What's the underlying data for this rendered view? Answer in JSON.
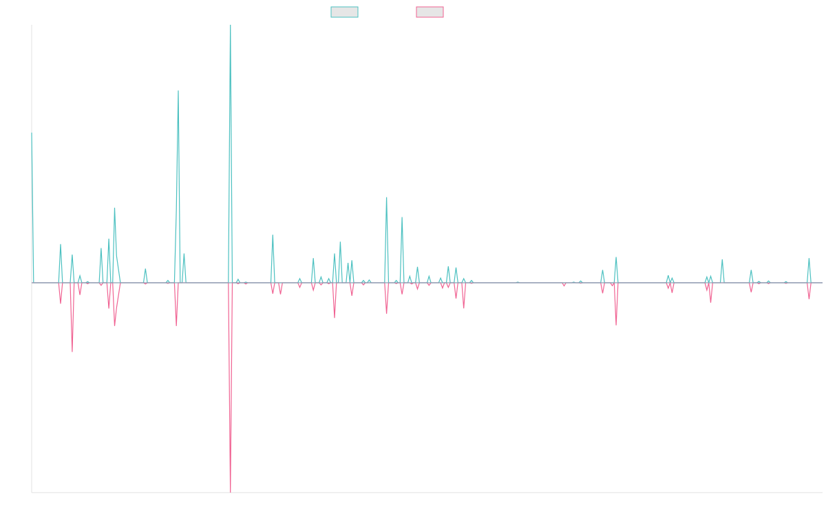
{
  "chart_data": {
    "type": "line",
    "title": "",
    "xlabel": "",
    "ylabel": "",
    "ylim": [
      -100,
      100
    ],
    "grid": false,
    "legend": {
      "placement": "top-center"
    },
    "series": [
      {
        "name": "",
        "color": "#4bc0c0",
        "points": [
          [
            0,
            64
          ],
          [
            0.5,
            0
          ],
          [
            7,
            0
          ],
          [
            7.5,
            16.5
          ],
          [
            8,
            0
          ],
          [
            10,
            0
          ],
          [
            10.5,
            12
          ],
          [
            11,
            0
          ],
          [
            12,
            0
          ],
          [
            12.5,
            3
          ],
          [
            13,
            0
          ],
          [
            14,
            0
          ],
          [
            14.5,
            0.5
          ],
          [
            15,
            0
          ],
          [
            17.5,
            0
          ],
          [
            18,
            14.8
          ],
          [
            18.5,
            0
          ],
          [
            19.5,
            0
          ],
          [
            20,
            18.8
          ],
          [
            20.5,
            0
          ],
          [
            21,
            0
          ],
          [
            21.5,
            32
          ],
          [
            22,
            11.5
          ],
          [
            23,
            0
          ],
          [
            29,
            0
          ],
          [
            29.5,
            6
          ],
          [
            30,
            0
          ],
          [
            34.8,
            0
          ],
          [
            35.3,
            1
          ],
          [
            35.8,
            0
          ],
          [
            37,
            0
          ],
          [
            37.5,
            31
          ],
          [
            38,
            82
          ],
          [
            38.5,
            0
          ],
          [
            39,
            0
          ],
          [
            39.5,
            12.5
          ],
          [
            40,
            0
          ],
          [
            51,
            0
          ],
          [
            51.5,
            110
          ],
          [
            52,
            0
          ],
          [
            53,
            0
          ],
          [
            53.5,
            1.5
          ],
          [
            54,
            0
          ],
          [
            55,
            0
          ],
          [
            55.5,
            0.3
          ],
          [
            56,
            0
          ],
          [
            62,
            0
          ],
          [
            62.5,
            20.5
          ],
          [
            63,
            0
          ],
          [
            69,
            0
          ],
          [
            69.5,
            1.8
          ],
          [
            70,
            0
          ],
          [
            72.5,
            0
          ],
          [
            73,
            10.5
          ],
          [
            73.5,
            0
          ],
          [
            74.5,
            0
          ],
          [
            75,
            2.5
          ],
          [
            75.5,
            0
          ],
          [
            76.5,
            0
          ],
          [
            77,
            1.8
          ],
          [
            77.5,
            0
          ],
          [
            78,
            0
          ],
          [
            78.5,
            12.5
          ],
          [
            79,
            0
          ],
          [
            79.5,
            0
          ],
          [
            80,
            17.5
          ],
          [
            80.5,
            0
          ],
          [
            81.5,
            0
          ],
          [
            82,
            8.5
          ],
          [
            82.5,
            0
          ],
          [
            83,
            9.6
          ],
          [
            83.5,
            0
          ],
          [
            85.5,
            0
          ],
          [
            86,
            1
          ],
          [
            86.5,
            0
          ],
          [
            87,
            0
          ],
          [
            87.5,
            1.2
          ],
          [
            88,
            0
          ],
          [
            91.5,
            0
          ],
          [
            92,
            36.5
          ],
          [
            92.5,
            0
          ],
          [
            94,
            0
          ],
          [
            94.5,
            1
          ],
          [
            95,
            0
          ],
          [
            95.5,
            0
          ],
          [
            96,
            28
          ],
          [
            96.5,
            0
          ],
          [
            97.5,
            0
          ],
          [
            98,
            2.8
          ],
          [
            98.5,
            0
          ],
          [
            99.5,
            0
          ],
          [
            100,
            6.8
          ],
          [
            100.5,
            0
          ],
          [
            102.5,
            0
          ],
          [
            103,
            2.8
          ],
          [
            103.5,
            0
          ],
          [
            105.5,
            0
          ],
          [
            106,
            2
          ],
          [
            106.5,
            0
          ],
          [
            107.5,
            0
          ],
          [
            108,
            7
          ],
          [
            108.5,
            0
          ],
          [
            109.5,
            0
          ],
          [
            110,
            6.5
          ],
          [
            110.5,
            0
          ],
          [
            111.5,
            0
          ],
          [
            112,
            1.8
          ],
          [
            112.5,
            0
          ],
          [
            113.5,
            0
          ],
          [
            114,
            1
          ],
          [
            114.5,
            0
          ],
          [
            125.5,
            0
          ],
          [
            126,
            0.3
          ],
          [
            126.5,
            0
          ],
          [
            140,
            0
          ],
          [
            140.5,
            0.3
          ],
          [
            141,
            0
          ],
          [
            141.8,
            0
          ],
          [
            142.3,
            0.8
          ],
          [
            142.8,
            0
          ],
          [
            147.5,
            0
          ],
          [
            148,
            5.5
          ],
          [
            148.5,
            0
          ],
          [
            151,
            0
          ],
          [
            151.5,
            11
          ],
          [
            152,
            0
          ],
          [
            164.5,
            0
          ],
          [
            165,
            3.2
          ],
          [
            165.5,
            0
          ],
          [
            166,
            2
          ],
          [
            166.5,
            0
          ],
          [
            174.5,
            0
          ],
          [
            175,
            2.5
          ],
          [
            175.5,
            0
          ],
          [
            176,
            2.8
          ],
          [
            176.5,
            0
          ],
          [
            178.5,
            0
          ],
          [
            179,
            10
          ],
          [
            179.5,
            0
          ],
          [
            186,
            0
          ],
          [
            186.5,
            5.5
          ],
          [
            187,
            0
          ],
          [
            188,
            0
          ],
          [
            188.5,
            0.6
          ],
          [
            189,
            0
          ],
          [
            190.5,
            0
          ],
          [
            191,
            0.8
          ],
          [
            191.5,
            0
          ],
          [
            195,
            0
          ],
          [
            195.5,
            0.5
          ],
          [
            196,
            0
          ],
          [
            201,
            0
          ],
          [
            201.5,
            10.5
          ],
          [
            202,
            0
          ],
          [
            205,
            0
          ]
        ]
      },
      {
        "name": "",
        "color": "#f06292",
        "points": [
          [
            0,
            0
          ],
          [
            7,
            0
          ],
          [
            7.5,
            -10
          ],
          [
            8,
            0
          ],
          [
            10,
            0
          ],
          [
            10.5,
            -33
          ],
          [
            11,
            0
          ],
          [
            12,
            0
          ],
          [
            12.5,
            -5.8
          ],
          [
            13,
            0
          ],
          [
            14,
            0
          ],
          [
            14.5,
            -0.5
          ],
          [
            15,
            0
          ],
          [
            17.5,
            0
          ],
          [
            18,
            -1.2
          ],
          [
            18.5,
            0
          ],
          [
            19.5,
            0
          ],
          [
            20,
            -12.3
          ],
          [
            20.5,
            0
          ],
          [
            21,
            0
          ],
          [
            21.5,
            -20.6
          ],
          [
            22,
            -12
          ],
          [
            23,
            0
          ],
          [
            29,
            0
          ],
          [
            29.5,
            -0.6
          ],
          [
            30,
            0
          ],
          [
            34.8,
            0
          ],
          [
            35.3,
            -0.3
          ],
          [
            35.8,
            0
          ],
          [
            37,
            0
          ],
          [
            37.5,
            -20.6
          ],
          [
            38,
            0
          ],
          [
            51,
            0
          ],
          [
            51.5,
            -100
          ],
          [
            52,
            0
          ],
          [
            53,
            0
          ],
          [
            53.5,
            -0.5
          ],
          [
            54,
            0
          ],
          [
            55,
            0
          ],
          [
            55.5,
            -0.6
          ],
          [
            56,
            0
          ],
          [
            62,
            0
          ],
          [
            62.5,
            -5.2
          ],
          [
            63,
            0
          ],
          [
            64,
            0
          ],
          [
            64.5,
            -5.5
          ],
          [
            65,
            0
          ],
          [
            69,
            0
          ],
          [
            69.5,
            -2.2
          ],
          [
            70,
            0
          ],
          [
            72.5,
            0
          ],
          [
            73,
            -3.5
          ],
          [
            73.5,
            0
          ],
          [
            74.5,
            0
          ],
          [
            75,
            -1
          ],
          [
            75.5,
            0
          ],
          [
            76.5,
            0
          ],
          [
            77,
            -0.5
          ],
          [
            77.5,
            0
          ],
          [
            78,
            0
          ],
          [
            78.5,
            -16.8
          ],
          [
            79,
            0
          ],
          [
            82.5,
            0
          ],
          [
            83,
            -6.2
          ],
          [
            83.5,
            0
          ],
          [
            85.5,
            0
          ],
          [
            86,
            -1
          ],
          [
            86.5,
            0
          ],
          [
            91.5,
            0
          ],
          [
            92,
            -14.8
          ],
          [
            92.5,
            0
          ],
          [
            94,
            0
          ],
          [
            94.5,
            -0.4
          ],
          [
            95,
            0
          ],
          [
            95.5,
            0
          ],
          [
            96,
            -5.5
          ],
          [
            96.5,
            0
          ],
          [
            98,
            0
          ],
          [
            98.5,
            -0.6
          ],
          [
            99,
            0
          ],
          [
            99.5,
            0
          ],
          [
            100,
            -3
          ],
          [
            100.5,
            0
          ],
          [
            102.5,
            0
          ],
          [
            103,
            -1.2
          ],
          [
            103.5,
            0
          ],
          [
            106,
            0
          ],
          [
            106.5,
            -2.5
          ],
          [
            107,
            0
          ],
          [
            107.5,
            0
          ],
          [
            108,
            -2.2
          ],
          [
            108.5,
            0
          ],
          [
            109.5,
            0
          ],
          [
            110,
            -7.5
          ],
          [
            110.5,
            0
          ],
          [
            111.5,
            0
          ],
          [
            112,
            -12.2
          ],
          [
            112.5,
            0
          ],
          [
            113.5,
            0
          ],
          [
            114,
            -0.3
          ],
          [
            114.5,
            0
          ],
          [
            137.5,
            0
          ],
          [
            138,
            -1.5
          ],
          [
            138.5,
            0
          ],
          [
            141.8,
            0
          ],
          [
            142.3,
            -0.2
          ],
          [
            142.8,
            0
          ],
          [
            147.5,
            0
          ],
          [
            148,
            -5
          ],
          [
            148.5,
            0
          ],
          [
            150,
            0
          ],
          [
            150.5,
            -1.4
          ],
          [
            151,
            0
          ],
          [
            151.5,
            -20.3
          ],
          [
            152,
            0
          ],
          [
            164.5,
            0
          ],
          [
            165,
            -2.6
          ],
          [
            165.5,
            0
          ],
          [
            166,
            -4.8
          ],
          [
            166.5,
            0
          ],
          [
            174.5,
            0
          ],
          [
            175,
            -3.5
          ],
          [
            175.5,
            0
          ],
          [
            176,
            -9.5
          ],
          [
            176.5,
            0
          ],
          [
            186,
            0
          ],
          [
            186.5,
            -4.5
          ],
          [
            187,
            0
          ],
          [
            188,
            0
          ],
          [
            188.5,
            -0.5
          ],
          [
            189,
            0
          ],
          [
            190.5,
            0
          ],
          [
            191,
            -0.4
          ],
          [
            191.5,
            0
          ],
          [
            195,
            0
          ],
          [
            195.5,
            -0.3
          ],
          [
            196,
            0
          ],
          [
            201,
            0
          ],
          [
            201.5,
            -7.8
          ],
          [
            202,
            0
          ],
          [
            205,
            0
          ]
        ]
      }
    ]
  }
}
